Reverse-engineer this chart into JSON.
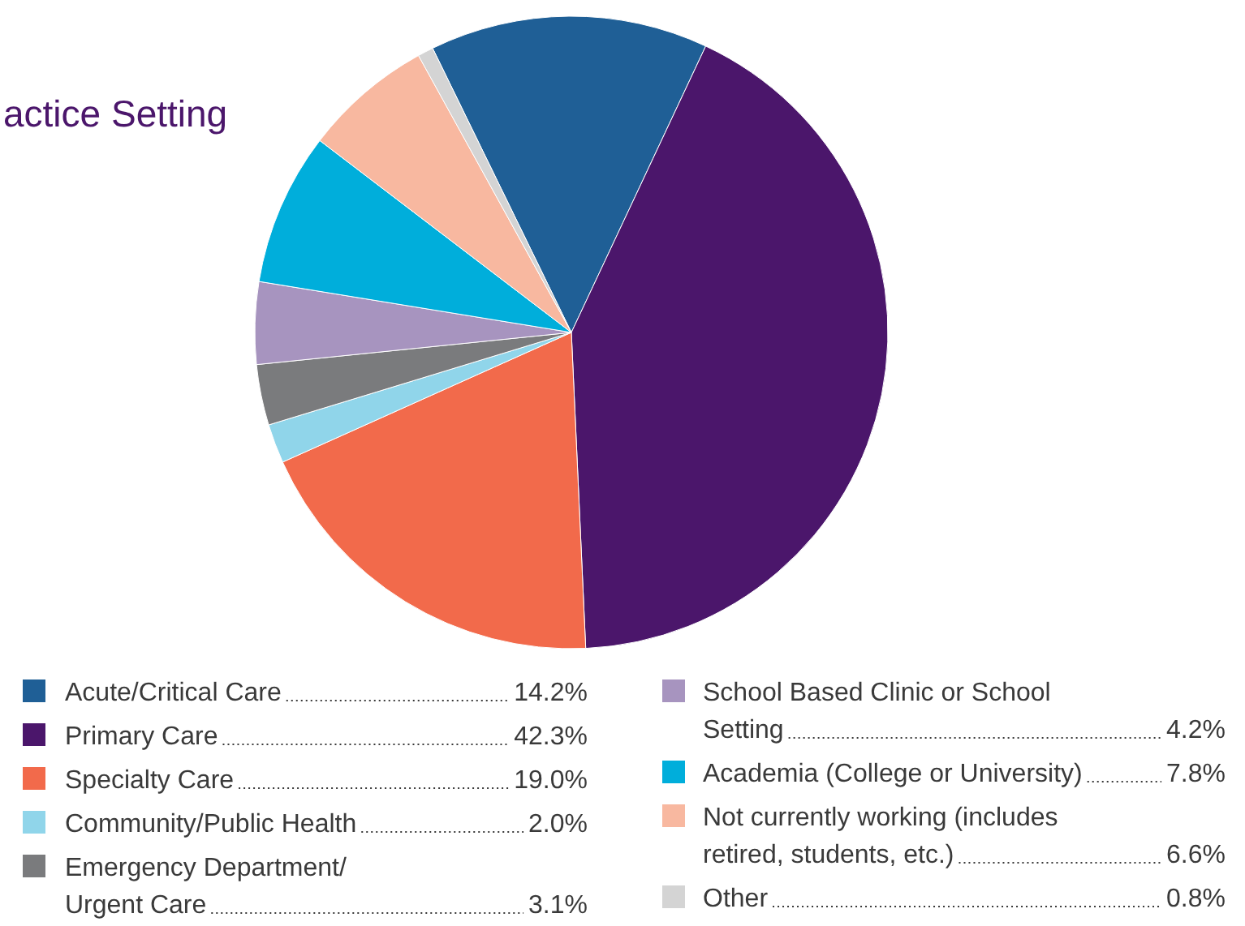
{
  "chart_data": {
    "type": "pie",
    "title": "actice Setting",
    "categories": [
      "Acute/Critical Care",
      "Primary Care",
      "Specialty Care",
      "Community/Public Health",
      "Emergency Department/\nUrgent Care",
      "School Based Clinic or School\nSetting",
      "Academia (College or University)",
      "Not currently working (includes\nretired, students, etc.)",
      "Other"
    ],
    "values": [
      14.2,
      42.3,
      19.0,
      2.0,
      3.1,
      4.2,
      7.8,
      6.6,
      0.8
    ],
    "value_labels": [
      "14.2%",
      "42.3%",
      "19.0%",
      "2.0%",
      "3.1%",
      "4.2%",
      "7.8%",
      "6.6%",
      "0.8%"
    ],
    "colors": [
      "#1f5f96",
      "#4b166b",
      "#f26a4b",
      "#90d5ea",
      "#7a7b7d",
      "#a794bf",
      "#00aedb",
      "#f8b8a0",
      "#d4d4d4"
    ],
    "legend": "bottom"
  }
}
